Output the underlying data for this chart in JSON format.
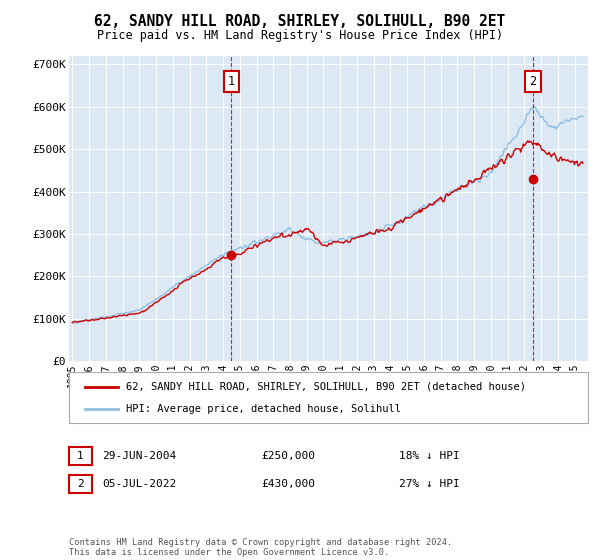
{
  "title": "62, SANDY HILL ROAD, SHIRLEY, SOLIHULL, B90 2ET",
  "subtitle": "Price paid vs. HM Land Registry's House Price Index (HPI)",
  "ylim": [
    0,
    720000
  ],
  "yticks": [
    0,
    100000,
    200000,
    300000,
    400000,
    500000,
    600000,
    700000
  ],
  "ytick_labels": [
    "£0",
    "£100K",
    "£200K",
    "£300K",
    "£400K",
    "£500K",
    "£600K",
    "£700K"
  ],
  "bg_color": "#dce9f5",
  "grid_color": "#ffffff",
  "hpi_color": "#92c0e0",
  "price_color": "#cc0000",
  "purchase1_date": 2004.49,
  "purchase1_price": 250000,
  "purchase2_date": 2022.51,
  "purchase2_price": 430000,
  "legend_label1": "62, SANDY HILL ROAD, SHIRLEY, SOLIHULL, B90 2ET (detached house)",
  "legend_label2": "HPI: Average price, detached house, Solihull",
  "annotation1_label": "1",
  "annotation1_date": "29-JUN-2004",
  "annotation1_price": "£250,000",
  "annotation1_pct": "18% ↓ HPI",
  "annotation2_label": "2",
  "annotation2_date": "05-JUL-2022",
  "annotation2_price": "£430,000",
  "annotation2_pct": "27% ↓ HPI",
  "footer": "Contains HM Land Registry data © Crown copyright and database right 2024.\nThis data is licensed under the Open Government Licence v3.0.",
  "xmin": 1994.8,
  "xmax": 2025.8
}
